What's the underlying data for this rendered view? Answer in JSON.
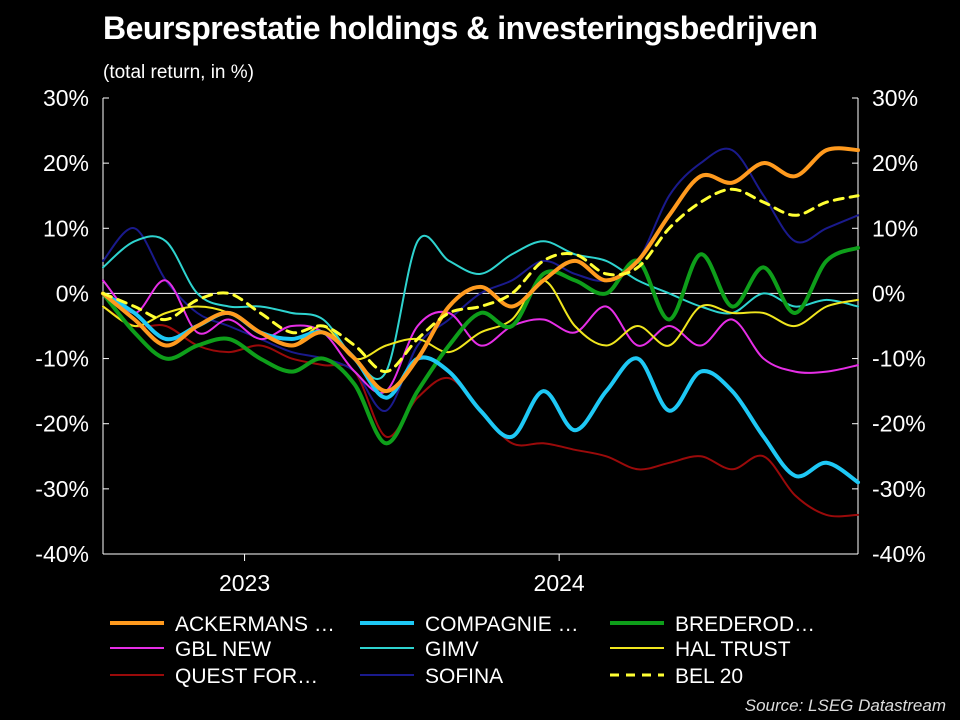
{
  "chart_data": {
    "type": "line",
    "title": "Beursprestatie holdings & investeringsbedrijven",
    "subtitle": "(total return, in %)",
    "source": "Source: LSEG Datastream",
    "ylim": [
      -40,
      30
    ],
    "yticks": [
      30,
      20,
      10,
      0,
      -10,
      -20,
      -30,
      -40
    ],
    "ytick_labels": [
      "30%",
      "20%",
      "10%",
      "0%",
      "-10%",
      "-20%",
      "-30%",
      "-40%"
    ],
    "xlim": [
      2022.55,
      2024.95
    ],
    "xticks": [
      2023,
      2024
    ],
    "xtick_labels": [
      "2023",
      "2024"
    ],
    "zero_line": true,
    "legend_position": "bottom",
    "x": [
      2022.55,
      2022.65,
      2022.75,
      2022.85,
      2022.95,
      2023.05,
      2023.15,
      2023.25,
      2023.35,
      2023.45,
      2023.55,
      2023.65,
      2023.75,
      2023.85,
      2023.95,
      2024.05,
      2024.15,
      2024.25,
      2024.35,
      2024.45,
      2024.55,
      2024.65,
      2024.75,
      2024.85,
      2024.95
    ],
    "series": [
      {
        "name": "ACKERMANS …",
        "color": "#FF9A1E",
        "width": 4,
        "dash": "",
        "values": [
          0,
          -4,
          -8,
          -5,
          -3,
          -6,
          -8,
          -6,
          -10,
          -15,
          -10,
          -2,
          1,
          -2,
          2,
          5,
          2,
          5,
          12,
          18,
          17,
          20,
          18,
          22,
          22
        ]
      },
      {
        "name": "COMPAGNIE …",
        "color": "#1EC8F5",
        "width": 4,
        "dash": "",
        "values": [
          0,
          -3,
          -7,
          -5,
          -3,
          -6,
          -7,
          -6,
          -10,
          -16,
          -10,
          -12,
          -18,
          -22,
          -15,
          -21,
          -15,
          -10,
          -18,
          -12,
          -15,
          -22,
          -28,
          -26,
          -29
        ]
      },
      {
        "name": "BREDEROD…",
        "color": "#0E9E1A",
        "width": 4,
        "dash": "",
        "values": [
          0,
          -6,
          -10,
          -8,
          -7,
          -10,
          -12,
          -10,
          -14,
          -23,
          -15,
          -8,
          -3,
          -5,
          3,
          2,
          0,
          5,
          -4,
          6,
          -2,
          4,
          -3,
          5,
          7
        ]
      },
      {
        "name": "GBL NEW",
        "color": "#E62EE6",
        "width": 2,
        "dash": "",
        "values": [
          2,
          -3,
          2,
          -6,
          -4,
          -7,
          -5,
          -6,
          -12,
          -15,
          -5,
          -3,
          -8,
          -5,
          -4,
          -6,
          -2,
          -8,
          -5,
          -8,
          -4,
          -10,
          -12,
          -12,
          -11
        ]
      },
      {
        "name": "GIMV",
        "color": "#2ED3CF",
        "width": 2,
        "dash": "",
        "values": [
          4,
          8,
          8,
          0,
          -2,
          -2,
          -3,
          -4,
          -10,
          -12,
          8,
          5,
          3,
          6,
          8,
          6,
          5,
          2,
          0,
          -2,
          -3,
          0,
          -2,
          -1,
          -2
        ]
      },
      {
        "name": "HAL TRUST",
        "color": "#F0E61E",
        "width": 2,
        "dash": "",
        "values": [
          -2,
          -5,
          -3,
          -2,
          -3,
          -6,
          -8,
          -5,
          -10,
          -8,
          -7,
          -9,
          -6,
          -4,
          2,
          -5,
          -8,
          -5,
          -8,
          -2,
          -3,
          -3,
          -5,
          -2,
          -1
        ]
      },
      {
        "name": "QUEST FOR…",
        "color": "#9A0A0A",
        "width": 2,
        "dash": "",
        "values": [
          -2,
          -5,
          -5,
          -8,
          -9,
          -8,
          -10,
          -11,
          -12,
          -22,
          -16,
          -13,
          -18,
          -23,
          -23,
          -24,
          -25,
          -27,
          -26,
          -25,
          -27,
          -25,
          -31,
          -34,
          -34
        ]
      },
      {
        "name": "SOFINA",
        "color": "#1A1A8C",
        "width": 2,
        "dash": "",
        "values": [
          5,
          10,
          2,
          -3,
          -5,
          -7,
          -9,
          -10,
          -12,
          -18,
          -8,
          -4,
          0,
          2,
          5,
          3,
          2,
          5,
          15,
          20,
          22,
          15,
          8,
          10,
          12
        ]
      },
      {
        "name": "BEL 20",
        "color": "#FFFF33",
        "width": 3,
        "dash": "9 7",
        "values": [
          0,
          -2,
          -4,
          -1,
          0,
          -3,
          -6,
          -5,
          -8,
          -12,
          -7,
          -3,
          -2,
          0,
          5,
          6,
          3,
          4,
          10,
          14,
          16,
          14,
          12,
          14,
          15
        ]
      }
    ]
  }
}
